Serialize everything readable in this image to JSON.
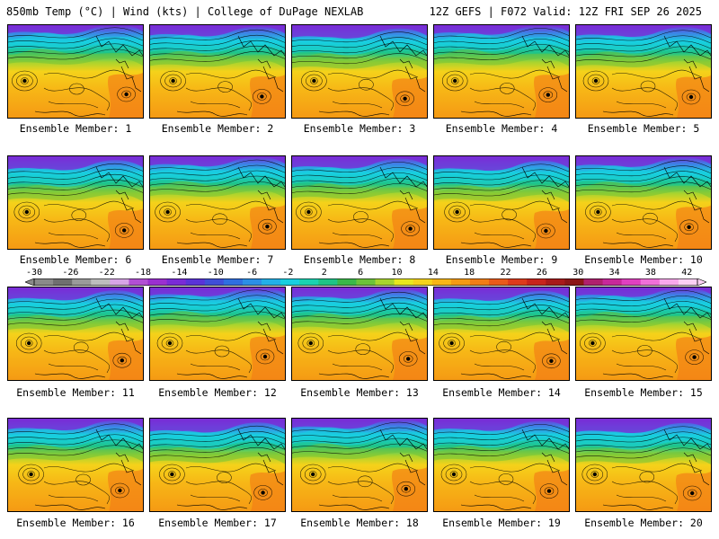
{
  "header": {
    "title": "850mb Temp (°C) | Wind (kts) | College of DuPage NEXLAB",
    "valid": "12Z GEFS | F072 Valid: 12Z FRI SEP 26 2025"
  },
  "members": [
    {
      "label": "Ensemble Member: 1"
    },
    {
      "label": "Ensemble Member: 2"
    },
    {
      "label": "Ensemble Member: 3"
    },
    {
      "label": "Ensemble Member: 4"
    },
    {
      "label": "Ensemble Member: 5"
    },
    {
      "label": "Ensemble Member: 6"
    },
    {
      "label": "Ensemble Member: 7"
    },
    {
      "label": "Ensemble Member: 8"
    },
    {
      "label": "Ensemble Member: 9"
    },
    {
      "label": "Ensemble Member: 10"
    },
    {
      "label": "Ensemble Member: 11"
    },
    {
      "label": "Ensemble Member: 12"
    },
    {
      "label": "Ensemble Member: 13"
    },
    {
      "label": "Ensemble Member: 14"
    },
    {
      "label": "Ensemble Member: 15"
    },
    {
      "label": "Ensemble Member: 16"
    },
    {
      "label": "Ensemble Member: 17"
    },
    {
      "label": "Ensemble Member: 18"
    },
    {
      "label": "Ensemble Member: 19"
    },
    {
      "label": "Ensemble Member: 20"
    }
  ],
  "colorbar": {
    "ticks": [
      "-30",
      "-26",
      "-22",
      "-18",
      "-14",
      "-10",
      "-6",
      "-2",
      "2",
      "6",
      "10",
      "14",
      "18",
      "22",
      "26",
      "30",
      "34",
      "38",
      "42"
    ],
    "colors": [
      "#8a8a8a",
      "#6f6f6f",
      "#9a9a9a",
      "#bdbdbd",
      "#d7a4e6",
      "#b24fd4",
      "#9b2fd0",
      "#7a2bd6",
      "#5a33d8",
      "#3f4fd8",
      "#2f6fe0",
      "#2b8fe6",
      "#22b0e8",
      "#18cfe0",
      "#1ad2b0",
      "#1fc486",
      "#3ab84a",
      "#6cc23a",
      "#a8d42e",
      "#e8e81e",
      "#f5d21a",
      "#f7b616",
      "#f59a14",
      "#f27d16",
      "#ea5a1a",
      "#de3a1c",
      "#c8241c",
      "#a81a1a",
      "#8c1616",
      "#b0206e",
      "#c8289a",
      "#e040c0",
      "#f070d8",
      "#f8a8ec",
      "#fcd0f4"
    ]
  }
}
